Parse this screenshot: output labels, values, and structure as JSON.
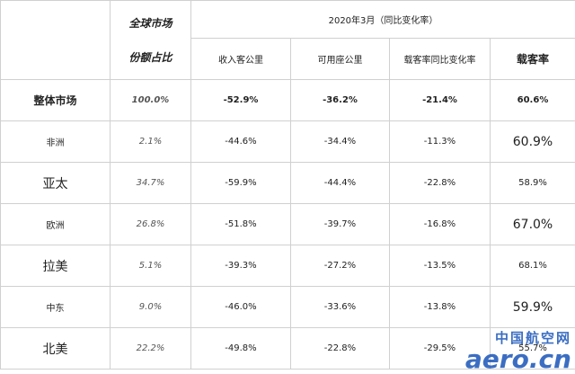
{
  "table": {
    "header": {
      "group": "2020年3月（同比变化率）",
      "share": [
        "全球市场",
        "份额占比"
      ],
      "columns": [
        "收入客公里",
        "可用座公里",
        "载客率同比变化率",
        "载客率"
      ]
    },
    "rows": [
      [
        "整体市场",
        "100.0%",
        "-52.9%",
        "-36.2%",
        "-21.4%",
        "60.6%"
      ],
      [
        "非洲",
        "2.1%",
        "-44.6%",
        "-34.4%",
        "-11.3%",
        "60.9%"
      ],
      [
        "亚太",
        "34.7%",
        "-59.9%",
        "-44.4%",
        "-22.8%",
        "58.9%"
      ],
      [
        "欧洲",
        "26.8%",
        "-51.8%",
        "-39.7%",
        "-16.8%",
        "67.0%"
      ],
      [
        "拉美",
        "5.1%",
        "-39.3%",
        "-27.2%",
        "-13.5%",
        "68.1%"
      ],
      [
        "中东",
        "9.0%",
        "-46.0%",
        "-33.6%",
        "-13.8%",
        "59.9%"
      ],
      [
        "北美",
        "22.2%",
        "-49.8%",
        "-22.8%",
        "-29.5%",
        "55.7%"
      ]
    ]
  },
  "watermark": [
    "中国航空网",
    "aero.cn"
  ]
}
